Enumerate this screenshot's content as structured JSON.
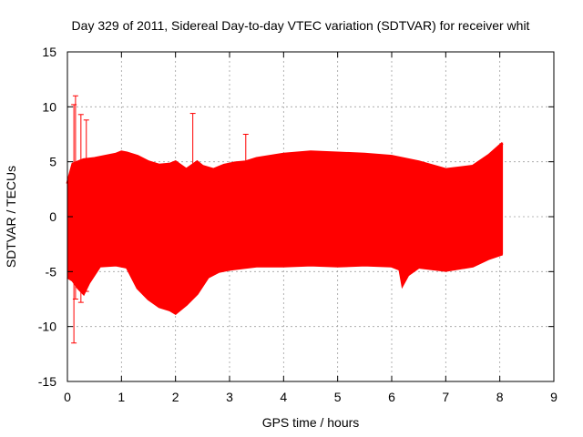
{
  "chart_data": {
    "type": "line",
    "title": "Day 329 of 2011, Sidereal Day-to-day VTEC variation (SDTVAR) for receiver whit",
    "xlabel": "GPS time / hours",
    "ylabel": "SDTVAR / TECUs",
    "xlim": [
      0,
      9
    ],
    "ylim": [
      -15,
      15
    ],
    "xticks": [
      "0",
      "1",
      "2",
      "3",
      "4",
      "5",
      "6",
      "7",
      "8",
      "9"
    ],
    "yticks": [
      "-15",
      "-10",
      "-5",
      "0",
      "5",
      "10",
      "15"
    ],
    "grid": true,
    "series": [
      {
        "color": "#ff0000",
        "upper_envelope": [
          [
            0.0,
            3.0
          ],
          [
            0.1,
            4.8
          ],
          [
            0.2,
            5.0
          ],
          [
            0.3,
            5.2
          ],
          [
            0.5,
            5.3
          ],
          [
            0.7,
            5.5
          ],
          [
            0.9,
            5.7
          ],
          [
            1.0,
            5.9
          ],
          [
            1.1,
            5.8
          ],
          [
            1.3,
            5.5
          ],
          [
            1.5,
            5.0
          ],
          [
            1.7,
            4.7
          ],
          [
            1.9,
            4.8
          ],
          [
            2.0,
            5.0
          ],
          [
            2.2,
            4.3
          ],
          [
            2.4,
            5.0
          ],
          [
            2.5,
            4.6
          ],
          [
            2.7,
            4.3
          ],
          [
            2.9,
            4.7
          ],
          [
            3.1,
            4.9
          ],
          [
            3.3,
            5.0
          ],
          [
            3.5,
            5.3
          ],
          [
            4.0,
            5.7
          ],
          [
            4.5,
            5.9
          ],
          [
            5.0,
            5.8
          ],
          [
            5.5,
            5.7
          ],
          [
            6.0,
            5.5
          ],
          [
            6.5,
            5.0
          ],
          [
            7.0,
            4.3
          ],
          [
            7.5,
            4.6
          ],
          [
            7.8,
            5.6
          ],
          [
            8.05,
            6.7
          ]
        ],
        "lower_envelope": [
          [
            0.0,
            -5.5
          ],
          [
            0.1,
            -5.8
          ],
          [
            0.2,
            -6.5
          ],
          [
            0.3,
            -7.0
          ],
          [
            0.4,
            -6.0
          ],
          [
            0.6,
            -4.5
          ],
          [
            0.9,
            -4.4
          ],
          [
            1.1,
            -4.6
          ],
          [
            1.3,
            -6.5
          ],
          [
            1.5,
            -7.5
          ],
          [
            1.7,
            -8.2
          ],
          [
            1.9,
            -8.5
          ],
          [
            2.0,
            -8.8
          ],
          [
            2.2,
            -8.0
          ],
          [
            2.4,
            -7.0
          ],
          [
            2.6,
            -5.5
          ],
          [
            2.8,
            -5.0
          ],
          [
            3.0,
            -4.8
          ],
          [
            3.5,
            -4.5
          ],
          [
            4.0,
            -4.5
          ],
          [
            4.5,
            -4.4
          ],
          [
            5.0,
            -4.5
          ],
          [
            5.5,
            -4.4
          ],
          [
            6.0,
            -4.5
          ],
          [
            6.15,
            -4.8
          ],
          [
            6.2,
            -6.2
          ],
          [
            6.3,
            -5.3
          ],
          [
            6.5,
            -4.6
          ],
          [
            7.0,
            -4.9
          ],
          [
            7.5,
            -4.5
          ],
          [
            7.8,
            -3.8
          ],
          [
            8.05,
            -3.4
          ]
        ],
        "spikes": [
          [
            0.12,
            -11.5,
            10.2
          ],
          [
            0.15,
            -7.5,
            11.0
          ],
          [
            0.25,
            -7.8,
            9.3
          ],
          [
            0.35,
            -6.8,
            8.8
          ],
          [
            2.32,
            -3.0,
            9.4
          ],
          [
            3.3,
            -2.0,
            7.5
          ]
        ]
      }
    ]
  }
}
